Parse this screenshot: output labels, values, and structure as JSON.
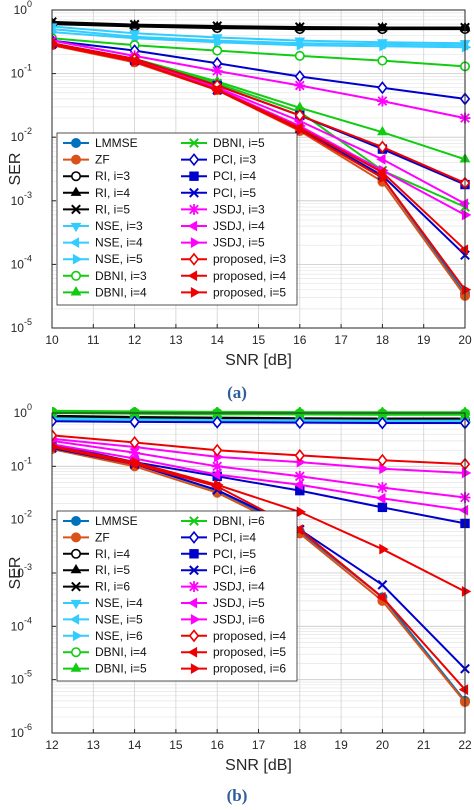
{
  "captions": [
    "(a)",
    "(b)"
  ],
  "chart_data": [
    {
      "type": "line",
      "xlabel": "SNR [dB]",
      "ylabel": "SER",
      "yscale": "log",
      "xlim": [
        10,
        20
      ],
      "ylim": [
        1e-05,
        1
      ],
      "x_ticks": [
        10,
        11,
        12,
        13,
        14,
        15,
        16,
        17,
        18,
        19,
        20
      ],
      "y_tick_labels": [
        {
          "base": "10",
          "exp": "0"
        },
        {
          "base": "10",
          "exp": "-1"
        },
        {
          "base": "10",
          "exp": "-2"
        },
        {
          "base": "10",
          "exp": "-3"
        },
        {
          "base": "10",
          "exp": "-4"
        },
        {
          "base": "10",
          "exp": "-5"
        }
      ],
      "grid": true,
      "legend_placement": "bottom-left, two columns",
      "x": [
        10,
        12,
        14,
        16,
        18,
        20
      ],
      "series": [
        {
          "name": "LMMSE",
          "color": "#0072BD",
          "marker": "circle-filled",
          "values": [
            0.29,
            0.155,
            0.058,
            0.0135,
            0.0023,
            3.5e-05
          ]
        },
        {
          "name": "ZF",
          "color": "#D95319",
          "marker": "circle-filled",
          "values": [
            0.28,
            0.15,
            0.055,
            0.0125,
            0.002,
            3.2e-05
          ]
        },
        {
          "name": "RI, i=3",
          "color": "#000000",
          "marker": "circle-open",
          "values": [
            0.6,
            0.55,
            0.52,
            0.5,
            0.5,
            0.5
          ]
        },
        {
          "name": "RI, i=4",
          "color": "#000000",
          "marker": "triangle-up",
          "values": [
            0.62,
            0.57,
            0.54,
            0.52,
            0.52,
            0.52
          ]
        },
        {
          "name": "RI, i=5",
          "color": "#000000",
          "marker": "x",
          "values": [
            0.65,
            0.59,
            0.56,
            0.54,
            0.53,
            0.53
          ]
        },
        {
          "name": "NSE, i=3",
          "color": "#33CCFF",
          "marker": "triangle-down",
          "values": [
            0.55,
            0.43,
            0.37,
            0.33,
            0.31,
            0.3
          ]
        },
        {
          "name": "NSE, i=4",
          "color": "#33CCFF",
          "marker": "triangle-left",
          "values": [
            0.5,
            0.38,
            0.33,
            0.3,
            0.29,
            0.28
          ]
        },
        {
          "name": "NSE, i=5",
          "color": "#33CCFF",
          "marker": "triangle-right",
          "values": [
            0.45,
            0.36,
            0.31,
            0.28,
            0.27,
            0.26
          ]
        },
        {
          "name": "DBNI, i=3",
          "color": "#11CC11",
          "marker": "circle-open",
          "values": [
            0.36,
            0.28,
            0.23,
            0.19,
            0.16,
            0.13
          ]
        },
        {
          "name": "DBNI, i=4",
          "color": "#11CC11",
          "marker": "triangle-up",
          "values": [
            0.3,
            0.17,
            0.075,
            0.029,
            0.012,
            0.0045
          ]
        },
        {
          "name": "DBNI, i=5",
          "color": "#11CC11",
          "marker": "x",
          "values": [
            0.29,
            0.165,
            0.07,
            0.025,
            0.003,
            0.0008
          ]
        },
        {
          "name": "PCI, i=3",
          "color": "#0000CC",
          "marker": "diamond-open",
          "values": [
            0.33,
            0.23,
            0.145,
            0.09,
            0.06,
            0.04
          ]
        },
        {
          "name": "PCI, i=4",
          "color": "#0000CC",
          "marker": "square-filled",
          "values": [
            0.3,
            0.17,
            0.065,
            0.022,
            0.0065,
            0.0018
          ]
        },
        {
          "name": "PCI, i=5",
          "color": "#0000CC",
          "marker": "x",
          "values": [
            0.29,
            0.16,
            0.055,
            0.0135,
            0.0025,
            0.00014
          ]
        },
        {
          "name": "JSDJ, i=3",
          "color": "#FF00FF",
          "marker": "star",
          "values": [
            0.33,
            0.19,
            0.11,
            0.065,
            0.037,
            0.02
          ]
        },
        {
          "name": "JSDJ, i=4",
          "color": "#FF00FF",
          "marker": "triangle-left",
          "values": [
            0.3,
            0.16,
            0.06,
            0.018,
            0.0045,
            0.0009
          ]
        },
        {
          "name": "JSDJ, i=5",
          "color": "#FF00FF",
          "marker": "triangle-right",
          "values": [
            0.29,
            0.155,
            0.057,
            0.015,
            0.003,
            0.0006
          ]
        },
        {
          "name": "proposed, i=3",
          "color": "#EE0000",
          "marker": "diamond-open",
          "values": [
            0.3,
            0.17,
            0.065,
            0.022,
            0.007,
            0.0019
          ]
        },
        {
          "name": "proposed, i=4",
          "color": "#EE0000",
          "marker": "triangle-left",
          "values": [
            0.29,
            0.158,
            0.056,
            0.014,
            0.0028,
            0.00017
          ]
        },
        {
          "name": "proposed, i=5",
          "color": "#EE0000",
          "marker": "triangle-right",
          "values": [
            0.285,
            0.155,
            0.055,
            0.013,
            0.0023,
            4e-05
          ]
        }
      ]
    },
    {
      "type": "line",
      "xlabel": "SNR [dB]",
      "ylabel": "SER",
      "yscale": "log",
      "xlim": [
        12,
        22
      ],
      "ylim": [
        1e-06,
        1
      ],
      "x_ticks": [
        12,
        13,
        14,
        15,
        16,
        17,
        18,
        19,
        20,
        21,
        22
      ],
      "y_tick_labels": [
        {
          "base": "10",
          "exp": "0"
        },
        {
          "base": "10",
          "exp": "-1"
        },
        {
          "base": "10",
          "exp": "-2"
        },
        {
          "base": "10",
          "exp": "-3"
        },
        {
          "base": "10",
          "exp": "-4"
        },
        {
          "base": "10",
          "exp": "-5"
        },
        {
          "base": "10",
          "exp": "-6"
        }
      ],
      "grid": true,
      "legend_placement": "bottom-left, two columns",
      "x": [
        12,
        14,
        16,
        18,
        20,
        22
      ],
      "series": [
        {
          "name": "LMMSE",
          "color": "#0072BD",
          "marker": "circle-filled",
          "values": [
            0.22,
            0.11,
            0.035,
            0.006,
            0.00035,
            4e-06
          ]
        },
        {
          "name": "ZF",
          "color": "#D95319",
          "marker": "circle-filled",
          "values": [
            0.21,
            0.1,
            0.032,
            0.0055,
            0.0003,
            3.8e-06
          ]
        },
        {
          "name": "RI, i=4",
          "color": "#000000",
          "marker": "circle-open",
          "values": [
            0.85,
            0.8,
            0.78,
            0.76,
            0.75,
            0.75
          ]
        },
        {
          "name": "RI, i=5",
          "color": "#000000",
          "marker": "triangle-up",
          "values": [
            0.87,
            0.82,
            0.8,
            0.78,
            0.77,
            0.77
          ]
        },
        {
          "name": "RI, i=6",
          "color": "#000000",
          "marker": "x",
          "values": [
            0.89,
            0.84,
            0.82,
            0.8,
            0.79,
            0.79
          ]
        },
        {
          "name": "NSE, i=4",
          "color": "#33CCFF",
          "marker": "triangle-down",
          "values": [
            0.8,
            0.76,
            0.74,
            0.73,
            0.72,
            0.72
          ]
        },
        {
          "name": "NSE, i=5",
          "color": "#33CCFF",
          "marker": "triangle-left",
          "values": [
            0.78,
            0.74,
            0.72,
            0.71,
            0.7,
            0.7
          ]
        },
        {
          "name": "NSE, i=6",
          "color": "#33CCFF",
          "marker": "triangle-right",
          "values": [
            0.76,
            0.72,
            0.7,
            0.69,
            0.68,
            0.68
          ]
        },
        {
          "name": "DBNI, i=4",
          "color": "#11CC11",
          "marker": "circle-open",
          "values": [
            1.05,
            1.02,
            1.0,
            0.99,
            0.98,
            0.98
          ]
        },
        {
          "name": "DBNI, i=5",
          "color": "#11CC11",
          "marker": "triangle-up",
          "values": [
            1.1,
            1.07,
            1.05,
            1.04,
            1.03,
            1.03
          ]
        },
        {
          "name": "DBNI, i=6",
          "color": "#11CC11",
          "marker": "x",
          "values": [
            1.0,
            0.97,
            0.95,
            0.94,
            0.93,
            0.93
          ]
        },
        {
          "name": "PCI, i=4",
          "color": "#0000CC",
          "marker": "diamond-open",
          "values": [
            0.7,
            0.68,
            0.67,
            0.66,
            0.65,
            0.65
          ]
        },
        {
          "name": "PCI, i=5",
          "color": "#0000CC",
          "marker": "square-filled",
          "values": [
            0.26,
            0.12,
            0.065,
            0.035,
            0.017,
            0.0085
          ]
        },
        {
          "name": "PCI, i=6",
          "color": "#0000CC",
          "marker": "x",
          "values": [
            0.22,
            0.11,
            0.036,
            0.0065,
            0.0006,
            1.6e-05
          ]
        },
        {
          "name": "JSDJ, i=4",
          "color": "#FF00FF",
          "marker": "star",
          "values": [
            0.3,
            0.18,
            0.1,
            0.065,
            0.04,
            0.026
          ]
        },
        {
          "name": "JSDJ, i=5",
          "color": "#FF00FF",
          "marker": "triangle-left",
          "values": [
            0.26,
            0.14,
            0.07,
            0.045,
            0.025,
            0.015
          ]
        },
        {
          "name": "JSDJ, i=6",
          "color": "#FF00FF",
          "marker": "triangle-right",
          "values": [
            0.33,
            0.23,
            0.15,
            0.12,
            0.09,
            0.075
          ]
        },
        {
          "name": "proposed, i=4",
          "color": "#EE0000",
          "marker": "diamond-open",
          "values": [
            0.38,
            0.28,
            0.2,
            0.16,
            0.13,
            0.11
          ]
        },
        {
          "name": "proposed, i=5",
          "color": "#EE0000",
          "marker": "triangle-left",
          "values": [
            0.23,
            0.11,
            0.042,
            0.0065,
            0.00035,
            6.5e-06
          ]
        },
        {
          "name": "proposed, i=6",
          "color": "#EE0000",
          "marker": "triangle-right",
          "values": [
            0.24,
            0.12,
            0.045,
            0.014,
            0.0028,
            0.00045
          ]
        }
      ]
    }
  ]
}
